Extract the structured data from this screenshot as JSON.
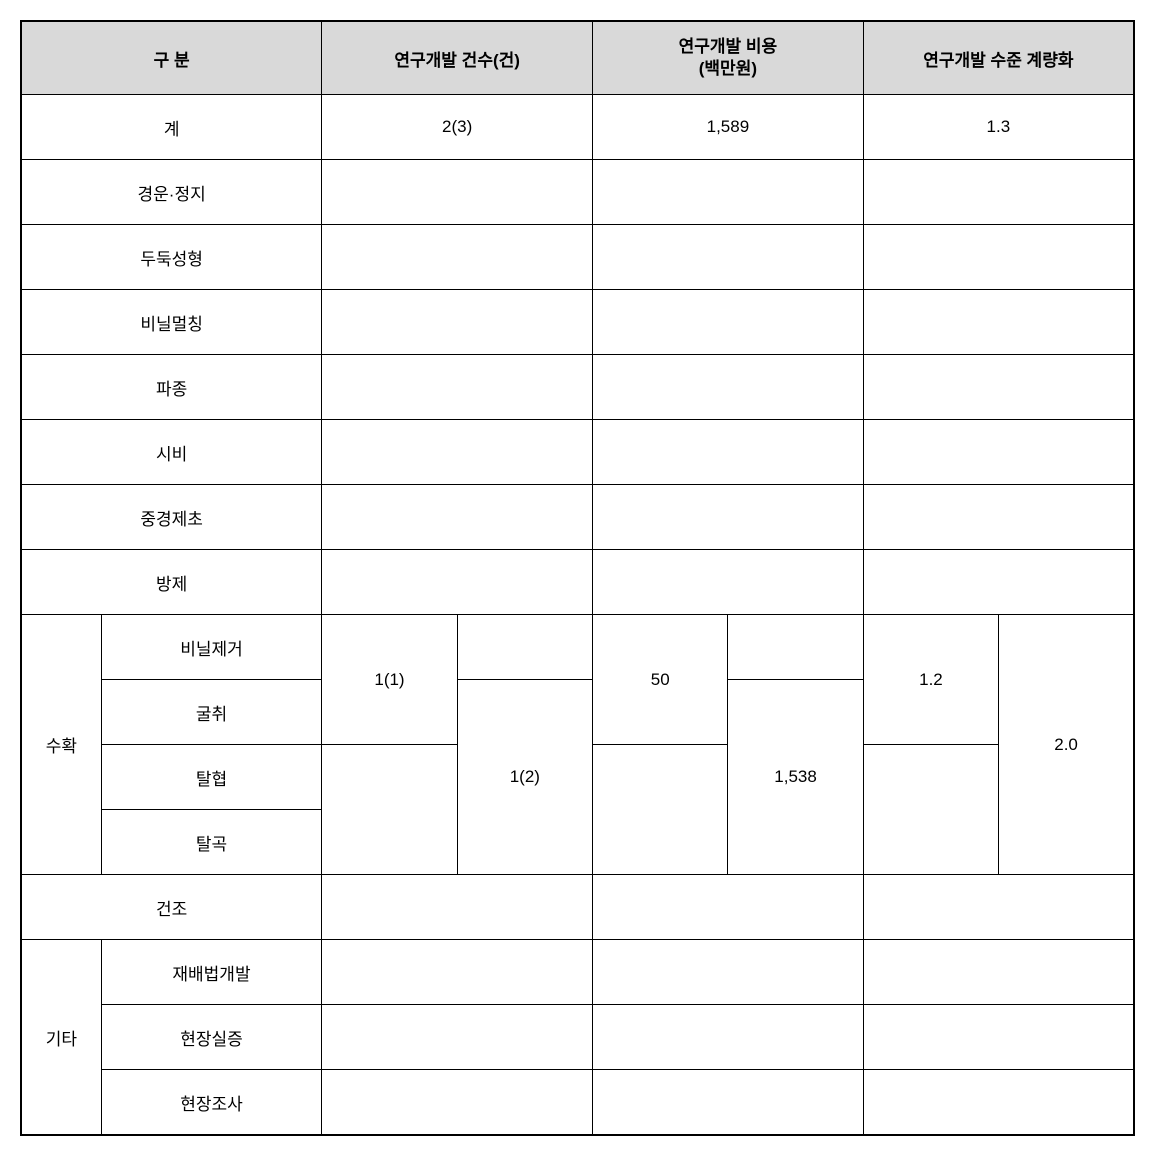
{
  "headers": {
    "category": "구  분",
    "count": "연구개발 건수(건)",
    "cost_line1": "연구개발 비용",
    "cost_line2": "(백만원)",
    "level": "연구개발 수준 계량화"
  },
  "rows": {
    "total_label": "계",
    "total_count": "2(3)",
    "total_cost": "1,589",
    "total_level": "1.3",
    "r1": "경운·정지",
    "r2": "두둑성형",
    "r3": "비닐멀칭",
    "r4": "파종",
    "r5": "시비",
    "r6": "중경제초",
    "r7": "방제",
    "harvest_group": "수확",
    "harvest_sub1": "비닐제거",
    "harvest_sub2": "굴취",
    "harvest_sub3": "탈협",
    "harvest_sub4": "탈곡",
    "harvest_count_a": "1(1)",
    "harvest_count_b": "1(2)",
    "harvest_cost_a": "50",
    "harvest_cost_b": "1,538",
    "harvest_level_a": "1.2",
    "harvest_level_b": "2.0",
    "r_dry": "건조",
    "etc_group": "기타",
    "etc_sub1": "재배법개발",
    "etc_sub2": "현장실증",
    "etc_sub3": "현장조사"
  }
}
